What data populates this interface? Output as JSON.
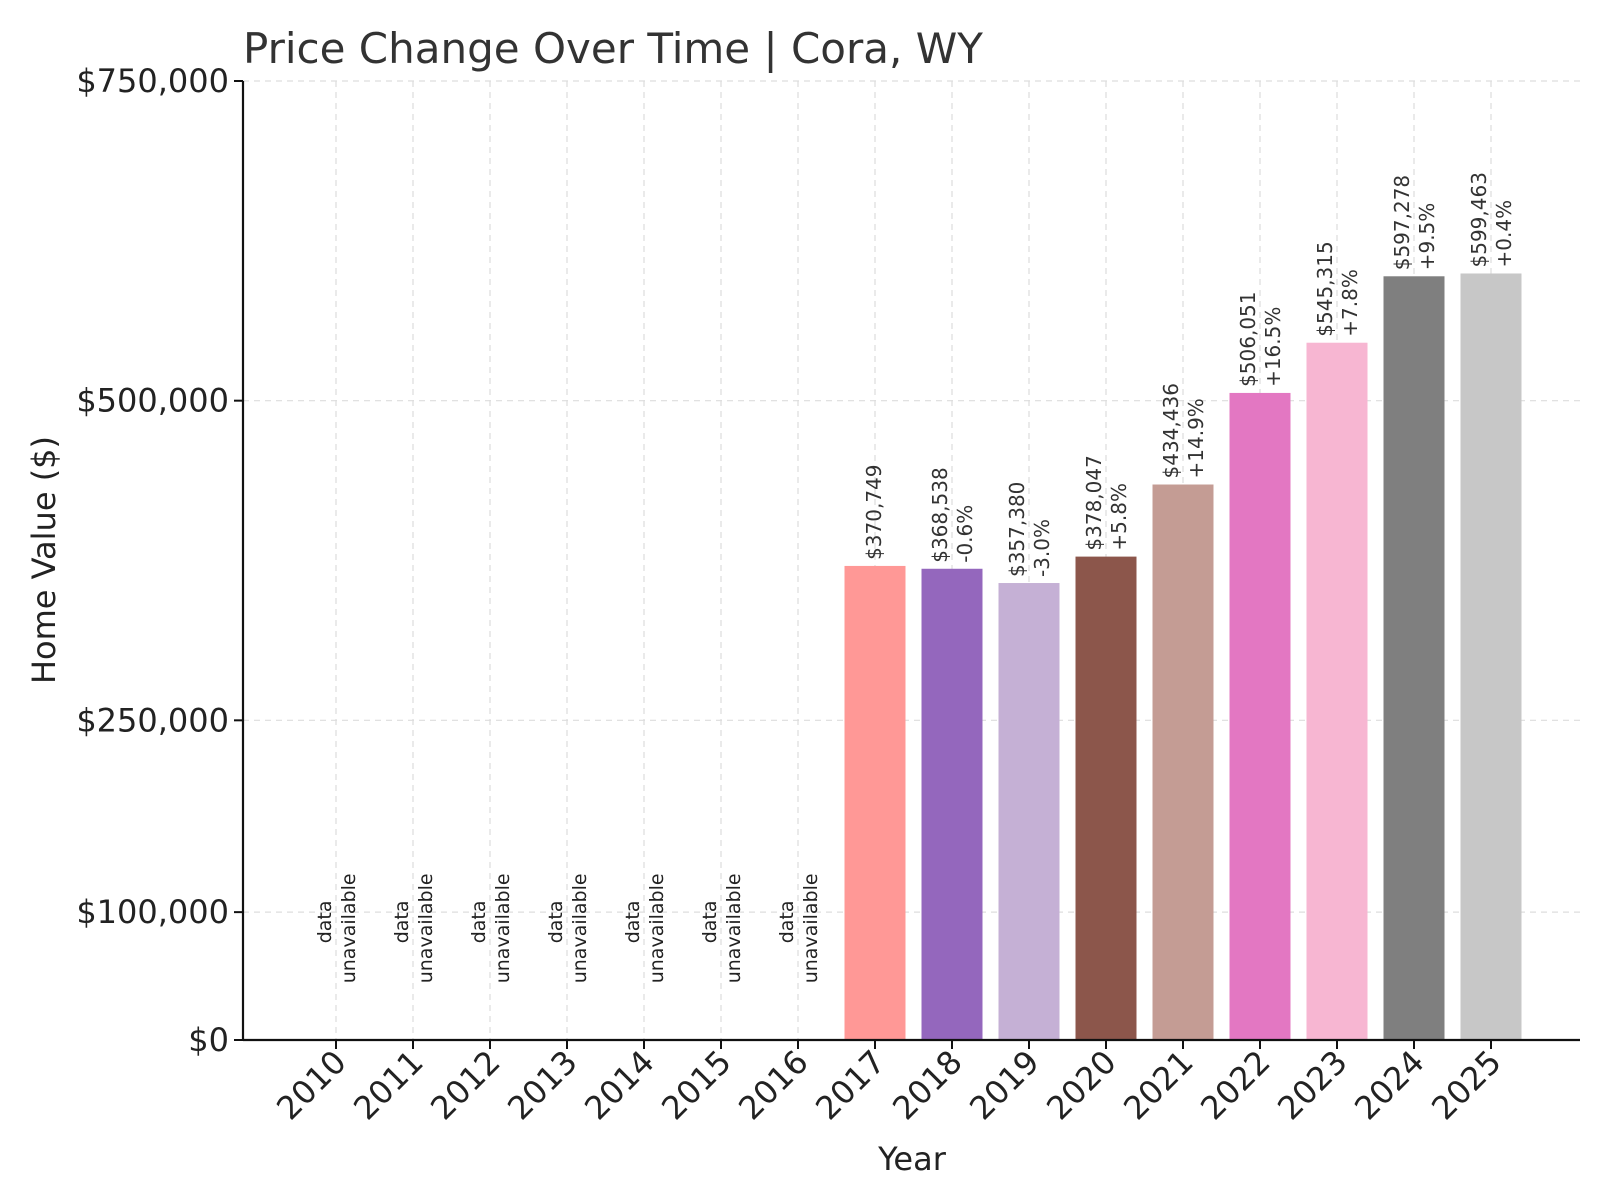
{
  "chart_data": {
    "type": "bar",
    "title": "Price Change Over Time | Cora, WY",
    "xlabel": "Year",
    "ylabel": "Home Value ($)",
    "ylim": [
      0,
      750000
    ],
    "yticks": [
      0,
      100000,
      250000,
      500000,
      750000
    ],
    "ytick_labels": [
      "$0",
      "$100,000",
      "$250,000",
      "$500,000",
      "$750,000"
    ],
    "grid": true,
    "categories": [
      "2010",
      "2011",
      "2012",
      "2013",
      "2014",
      "2015",
      "2016",
      "2017",
      "2018",
      "2019",
      "2020",
      "2021",
      "2022",
      "2023",
      "2024",
      "2025"
    ],
    "values": [
      null,
      null,
      null,
      null,
      null,
      null,
      null,
      370749,
      368538,
      357380,
      378047,
      434436,
      506051,
      545315,
      597278,
      599463
    ],
    "value_labels": [
      "",
      "",
      "",
      "",
      "",
      "",
      "",
      "$370,749",
      "$368,538",
      "$357,380",
      "$378,047",
      "$434,436",
      "$506,051",
      "$545,315",
      "$597,278",
      "$599,463"
    ],
    "change_labels": [
      "",
      "",
      "",
      "",
      "",
      "",
      "",
      "",
      "-0.6%",
      "-3.0%",
      "+5.8%",
      "+14.9%",
      "+16.5%",
      "+7.8%",
      "+9.5%",
      "+0.4%"
    ],
    "missing_label_lines": [
      "data",
      "unavailable"
    ],
    "colors": [
      "#1f77b4",
      "#ff7f0e",
      "#2ca02c",
      "#d62728",
      "#9467bd",
      "#8c564b",
      "#e377c2",
      "#ff9896",
      "#9467bd",
      "#c5b0d5",
      "#8c564b",
      "#c49c94",
      "#e377c2",
      "#f7b6d2",
      "#7f7f7f",
      "#c7c7c7"
    ]
  }
}
